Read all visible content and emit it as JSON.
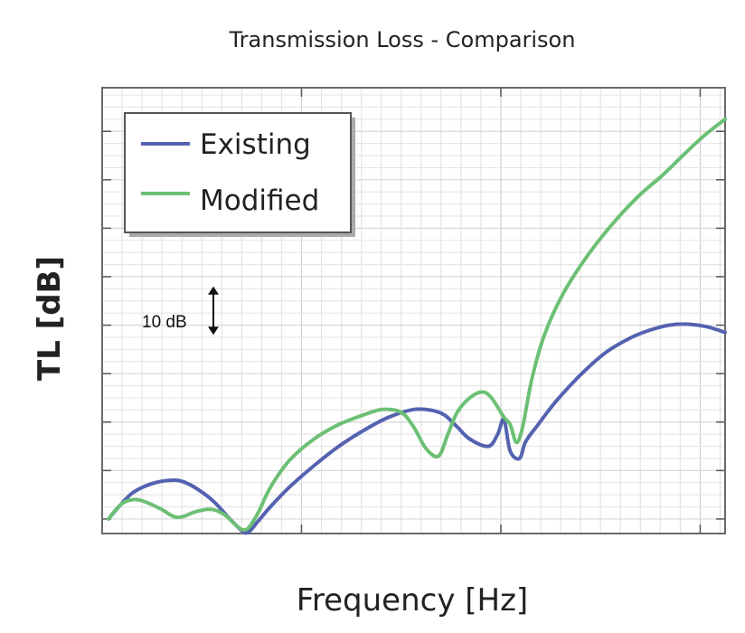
{
  "chart_data": {
    "type": "line",
    "title": "Transmission Loss - Comparison",
    "xlabel": "Frequency [Hz]",
    "ylabel": "TL [dB]",
    "xlim": [
      0,
      100
    ],
    "ylim": [
      0,
      92
    ],
    "grid": true,
    "legend": {
      "position": "top-left",
      "entries": [
        "Existing",
        "Modified"
      ]
    },
    "annotation": {
      "text": "10 dB",
      "value_from": 41,
      "value_to": 51
    },
    "series": [
      {
        "name": "Existing",
        "color": "#5462b0",
        "points": [
          [
            1,
            3
          ],
          [
            3,
            6
          ],
          [
            5,
            8.5
          ],
          [
            8,
            10.3
          ],
          [
            11,
            11
          ],
          [
            13,
            10.7
          ],
          [
            15.5,
            9
          ],
          [
            18,
            6.5
          ],
          [
            20.5,
            3
          ],
          [
            22.5,
            0.5
          ],
          [
            23.5,
            0.3
          ],
          [
            25,
            2.5
          ],
          [
            27,
            5.5
          ],
          [
            30,
            9.5
          ],
          [
            34,
            14
          ],
          [
            38,
            18
          ],
          [
            42,
            21.3
          ],
          [
            46,
            24
          ],
          [
            50,
            25.6
          ],
          [
            53,
            25.4
          ],
          [
            55,
            24.4
          ],
          [
            57,
            22
          ],
          [
            59,
            19.5
          ],
          [
            62,
            18
          ],
          [
            63.5,
            20.5
          ],
          [
            64.5,
            23.5
          ],
          [
            65.5,
            17
          ],
          [
            67,
            15.5
          ],
          [
            68,
            19
          ],
          [
            70,
            22.5
          ],
          [
            73,
            27.5
          ],
          [
            77,
            33
          ],
          [
            81,
            37.5
          ],
          [
            85,
            40.5
          ],
          [
            88,
            42
          ],
          [
            91,
            43
          ],
          [
            94,
            43.2
          ],
          [
            97,
            42.7
          ],
          [
            100,
            41.5
          ]
        ]
      },
      {
        "name": "Modified",
        "color": "#6cc074",
        "points": [
          [
            1,
            3
          ],
          [
            3,
            6
          ],
          [
            5,
            7
          ],
          [
            7,
            6.5
          ],
          [
            9.5,
            5
          ],
          [
            11.5,
            3.5
          ],
          [
            13,
            3.5
          ],
          [
            15,
            4.5
          ],
          [
            17.5,
            5
          ],
          [
            19.5,
            4
          ],
          [
            21.5,
            1.7
          ],
          [
            22.5,
            0.8
          ],
          [
            23.5,
            1.2
          ],
          [
            25,
            4.2
          ],
          [
            27,
            9.5
          ],
          [
            30,
            15
          ],
          [
            34,
            19.5
          ],
          [
            38,
            22.5
          ],
          [
            42,
            24.5
          ],
          [
            45,
            25.6
          ],
          [
            48,
            25
          ],
          [
            50,
            22
          ],
          [
            52,
            17.5
          ],
          [
            54,
            16
          ],
          [
            55.5,
            20.5
          ],
          [
            57,
            25
          ],
          [
            59,
            28
          ],
          [
            61,
            29.2
          ],
          [
            62.5,
            28
          ],
          [
            64.5,
            24
          ],
          [
            65.5,
            22.5
          ],
          [
            66.5,
            18.8
          ],
          [
            67.5,
            22
          ],
          [
            69,
            32
          ],
          [
            71,
            41
          ],
          [
            74,
            49.5
          ],
          [
            78,
            57.5
          ],
          [
            82,
            64
          ],
          [
            86,
            69.5
          ],
          [
            90,
            74
          ],
          [
            94,
            79
          ],
          [
            97,
            82.5
          ],
          [
            100,
            85.5
          ]
        ]
      }
    ]
  }
}
